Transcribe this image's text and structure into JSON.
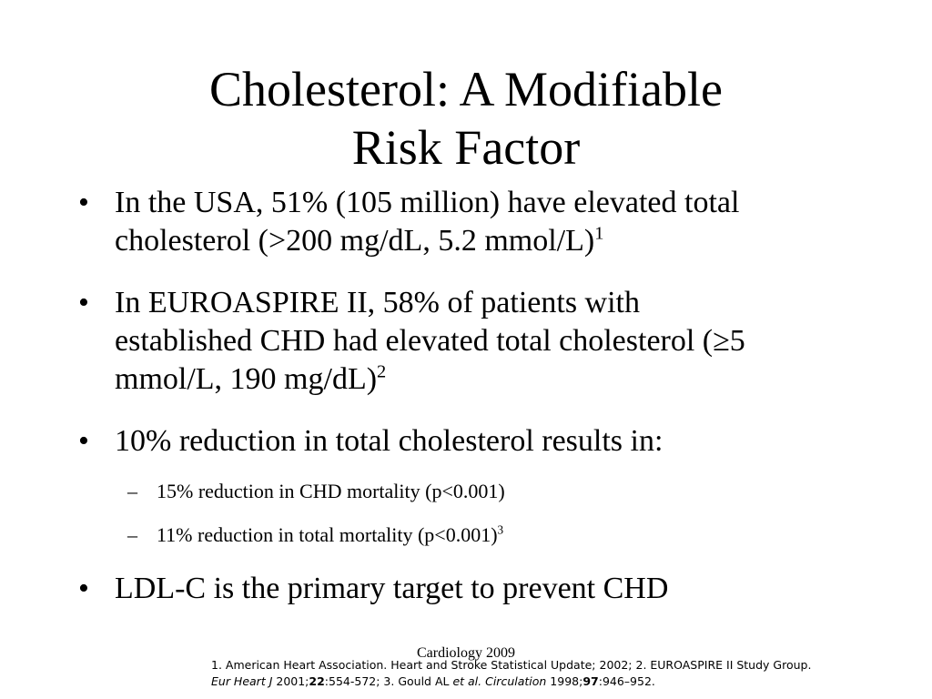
{
  "title": {
    "line1": "Cholesterol: A Modifiable",
    "line2": "Risk Factor"
  },
  "bullets": [
    {
      "marker": "•",
      "line1": "In the USA, 51% (105 million) have elevated total",
      "line2": "cholesterol (>200 mg/dL, 5.2 mmol/L)",
      "ref": "1"
    },
    {
      "marker": "•",
      "line1": "In EUROASPIRE II, 58% of patients with",
      "line2": "established CHD had elevated total cholesterol (≥5",
      "line3": "mmol/L, 190 mg/dL)",
      "ref": "2"
    },
    {
      "marker": "•",
      "line1": "10% reduction in total cholesterol results in:"
    },
    {
      "marker": "•",
      "line1": "LDL-C is the primary target to prevent CHD"
    }
  ],
  "subbullets": [
    {
      "marker": "–",
      "text": "15% reduction in CHD mortality (p<0.001)"
    },
    {
      "marker": "–",
      "text": "11% reduction in total mortality (p<0.001)",
      "ref": "3"
    }
  ],
  "footer": {
    "source": "Cardiology 2009"
  },
  "references": {
    "line1": "1. American Heart Association. Heart and Stroke Statistical Update; 2002; 2. EUROASPIRE II Study Group.",
    "l2_journal1": "Eur Heart J",
    "l2_year1": " 2001;",
    "l2_vol1": "22",
    "l2_pages1": ":554-572; 3. Gould AL ",
    "l2_etal": "et al.",
    "l2_sp": " ",
    "l2_journal2": "Circulation",
    "l2_year2": " 1998;",
    "l2_vol2": "97",
    "l2_pages2": ":946–952."
  }
}
